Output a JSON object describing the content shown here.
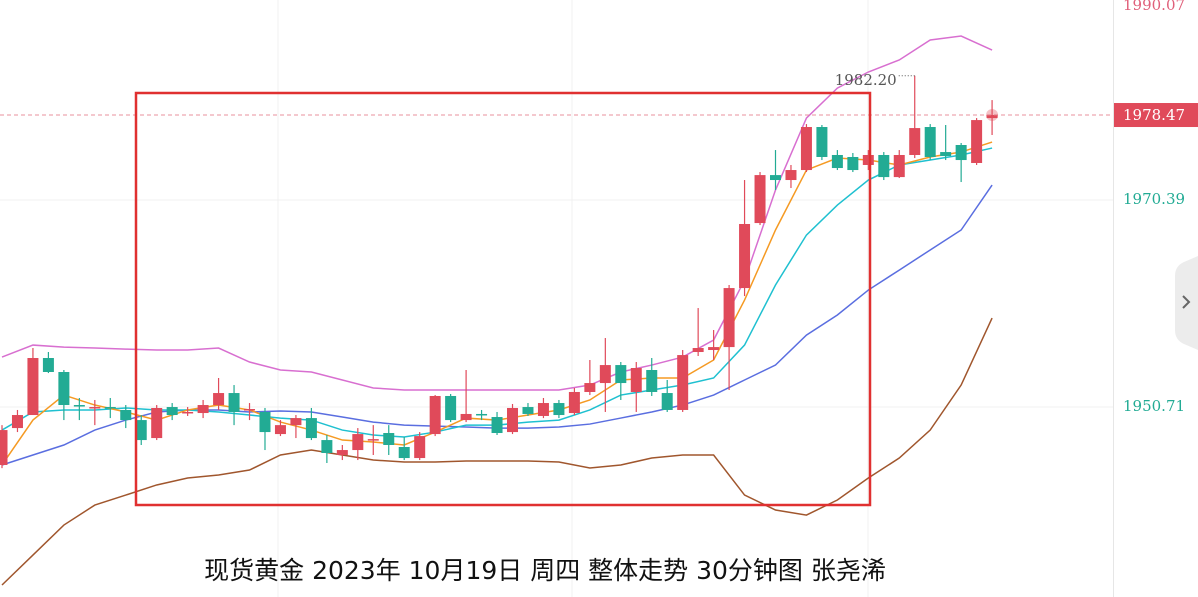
{
  "chart_data": {
    "type": "candlestick",
    "up_color": "#e04a5a",
    "down_color": "#22ab94",
    "ylim": [
      1932.65,
      1990.07
    ],
    "yticks": [
      1990.07,
      1970.39,
      1950.71
    ],
    "ytick_colors": [
      "#e0607a",
      "#22ab94",
      "#22ab94"
    ],
    "grid": true,
    "current_price": 1978.47,
    "high_label": {
      "value": 1982.2,
      "label": "1982.20"
    },
    "caption": "现货黄金 2023年 10月19日 周四 整体走势  30分钟图  张尧浠",
    "open": [
      1945.2,
      1948.71,
      1949.95,
      1955.37,
      1954.04,
      1950.9,
      1950.62,
      1950.71,
      1950.43,
      1949.47,
      1947.76,
      1950.71,
      1950.14,
      1950.14,
      1950.9,
      1952.04,
      1950.43,
      1950.24,
      1948.14,
      1948.99,
      1949.66,
      1947.57,
      1946.15,
      1946.62,
      1947.57,
      1948.24,
      1946.91,
      1945.86,
      1948.14,
      1951.76,
      1949.47,
      1950.05,
      1949.76,
      1948.33,
      1950.71,
      1949.86,
      1951.09,
      1950.14,
      1952.14,
      1952.99,
      1954.7,
      1952.14,
      1954.23,
      1952.04,
      1950.43,
      1955.94,
      1956.13,
      1956.41,
      1962.02,
      1968.2,
      1972.76,
      1972.29,
      1973.24,
      1977.33,
      1974.67,
      1974.48,
      1973.72,
      1974.67,
      1972.57,
      1974.67,
      1977.33,
      1974.95,
      1975.62,
      1973.91,
      1978.18
    ],
    "high": [
      1948.99,
      1950.43,
      1956.32,
      1955.94,
      1954.23,
      1951.57,
      1951.38,
      1951.57,
      1950.9,
      1949.95,
      1950.9,
      1951.09,
      1950.71,
      1951.38,
      1953.47,
      1952.8,
      1951.09,
      1950.62,
      1949.47,
      1949.95,
      1950.62,
      1948.05,
      1947.1,
      1948.71,
      1948.99,
      1948.99,
      1947.86,
      1948.33,
      1951.85,
      1951.95,
      1954.23,
      1950.43,
      1950.24,
      1951.0,
      1951.09,
      1951.57,
      1951.38,
      1952.52,
      1955.18,
      1957.27,
      1954.99,
      1954.99,
      1955.37,
      1953.28,
      1956.13,
      1960.12,
      1958.03,
      1962.31,
      1972.29,
      1973.05,
      1975.14,
      1973.72,
      1977.61,
      1977.52,
      1975.14,
      1974.86,
      1975.14,
      1974.95,
      1975.14,
      1982.2,
      1977.61,
      1977.52,
      1975.81,
      1978.18,
      1979.89
    ],
    "low": [
      1944.9,
      1948.33,
      1949.95,
      1953.94,
      1949.47,
      1949.47,
      1948.99,
      1949.66,
      1948.71,
      1947.1,
      1947.57,
      1949.47,
      1949.86,
      1949.66,
      1950.43,
      1948.99,
      1949.47,
      1946.62,
      1947.95,
      1947.76,
      1947.57,
      1945.39,
      1945.67,
      1945.67,
      1946.15,
      1946.15,
      1945.67,
      1945.67,
      1947.95,
      1949.28,
      1949.28,
      1949.47,
      1948.05,
      1948.14,
      1949.86,
      1949.66,
      1949.66,
      1949.95,
      1951.85,
      1950.24,
      1951.38,
      1950.24,
      1951.76,
      1950.24,
      1950.24,
      1955.56,
      1955.18,
      1952.33,
      1961.26,
      1968.01,
      1971.34,
      1971.53,
      1973.05,
      1974.19,
      1973.24,
      1973.05,
      1973.24,
      1972.29,
      1972.48,
      1974.38,
      1974.19,
      1974.19,
      1972.1,
      1973.72,
      1976.57
    ],
    "close": [
      1948.52,
      1949.95,
      1955.37,
      1954.04,
      1950.9,
      1950.81,
      1950.71,
      1950.62,
      1949.47,
      1947.57,
      1950.62,
      1949.95,
      1950.24,
      1950.9,
      1952.04,
      1950.24,
      1950.52,
      1948.33,
      1948.99,
      1949.66,
      1947.76,
      1946.34,
      1946.62,
      1948.14,
      1947.66,
      1947.1,
      1945.86,
      1947.95,
      1951.76,
      1949.47,
      1950.05,
      1949.95,
      1948.24,
      1950.62,
      1950.05,
      1951.09,
      1949.95,
      1952.14,
      1952.99,
      1954.7,
      1952.99,
      1954.42,
      1952.14,
      1950.43,
      1955.65,
      1956.32,
      1956.41,
      1962.02,
      1968.11,
      1972.76,
      1972.29,
      1973.24,
      1977.33,
      1974.48,
      1973.43,
      1973.24,
      1974.67,
      1972.57,
      1974.67,
      1977.23,
      1974.48,
      1974.57,
      1974.19,
      1977.99,
      1978.47
    ],
    "series": [
      {
        "color": "#d86fd0",
        "x": [
          0,
          2,
          4,
          6,
          8,
          10,
          12,
          14,
          16,
          18,
          20,
          22,
          24,
          26,
          28,
          30,
          32,
          34,
          36,
          38,
          40,
          42,
          44,
          46,
          48,
          50,
          52,
          54,
          56,
          58,
          60,
          62,
          64
        ],
        "values": [
          1955.46,
          1956.6,
          1956.41,
          1956.32,
          1956.22,
          1956.13,
          1956.13,
          1956.32,
          1954.99,
          1954.23,
          1954.04,
          1953.28,
          1952.52,
          1952.33,
          1952.33,
          1952.33,
          1952.33,
          1952.33,
          1952.33,
          1952.8,
          1954.04,
          1954.7,
          1955.46,
          1957.08,
          1962.78,
          1971.34,
          1978.18,
          1981.03,
          1982.56,
          1983.7,
          1985.6,
          1985.98,
          1984.65
        ]
      },
      {
        "color": "#a0562d",
        "x": [
          0,
          2,
          4,
          6,
          8,
          10,
          12,
          14,
          16,
          18,
          20,
          22,
          24,
          26,
          28,
          30,
          32,
          34,
          36,
          38,
          40,
          42,
          44,
          46,
          48,
          50,
          52,
          54,
          56,
          58,
          60,
          62,
          64
        ],
        "values": [
          1933.79,
          1936.64,
          1939.49,
          1941.39,
          1942.34,
          1943.3,
          1943.96,
          1944.25,
          1944.72,
          1946.15,
          1946.62,
          1946.15,
          1945.67,
          1945.48,
          1945.48,
          1945.58,
          1945.58,
          1945.58,
          1945.48,
          1944.91,
          1945.2,
          1945.86,
          1946.15,
          1946.15,
          1942.34,
          1940.92,
          1940.44,
          1941.87,
          1943.96,
          1945.86,
          1948.52,
          1952.8,
          1959.17
        ]
      },
      {
        "color": "#5a6ee0",
        "x": [
          0,
          2,
          4,
          6,
          8,
          10,
          12,
          14,
          16,
          18,
          20,
          22,
          24,
          26,
          28,
          30,
          32,
          34,
          36,
          38,
          40,
          42,
          44,
          46,
          48,
          50,
          52,
          54,
          56,
          58,
          60,
          62,
          64
        ],
        "values": [
          1945.2,
          1946.15,
          1947.1,
          1948.52,
          1949.47,
          1950.24,
          1950.43,
          1950.43,
          1950.24,
          1950.33,
          1950.24,
          1949.76,
          1949.28,
          1948.99,
          1948.9,
          1948.81,
          1948.71,
          1948.71,
          1948.81,
          1949.09,
          1949.66,
          1950.24,
          1950.9,
          1951.85,
          1953.28,
          1954.7,
          1957.55,
          1959.46,
          1961.83,
          1963.73,
          1965.64,
          1967.54,
          1971.81
        ]
      },
      {
        "color": "#1fc0d0",
        "x": [
          0,
          2,
          4,
          6,
          8,
          10,
          12,
          14,
          16,
          18,
          20,
          22,
          24,
          26,
          28,
          30,
          32,
          34,
          36,
          38,
          40,
          42,
          44,
          46,
          48,
          50,
          52,
          54,
          56,
          58,
          60,
          62,
          64
        ],
        "values": [
          1948.52,
          1950.24,
          1950.43,
          1950.43,
          1950.62,
          1950.43,
          1950.43,
          1950.24,
          1949.95,
          1949.66,
          1949.47,
          1948.52,
          1948.05,
          1947.86,
          1948.33,
          1948.99,
          1948.99,
          1949.28,
          1949.47,
          1950.43,
          1951.85,
          1952.33,
          1952.8,
          1953.47,
          1956.6,
          1962.31,
          1967.06,
          1969.91,
          1972.29,
          1973.72,
          1974.19,
          1974.67,
          1975.33
        ]
      },
      {
        "color": "#f59a23",
        "x": [
          0,
          2,
          4,
          6,
          8,
          10,
          12,
          14,
          16,
          18,
          20,
          22,
          24,
          26,
          28,
          30,
          32,
          34,
          36,
          38,
          40,
          42,
          44,
          46,
          48,
          50,
          52,
          54,
          56,
          58,
          60,
          62,
          64
        ],
        "values": [
          1945.2,
          1949.47,
          1951.85,
          1950.9,
          1950.24,
          1949.47,
          1950.43,
          1950.9,
          1950.43,
          1949.28,
          1948.52,
          1947.57,
          1947.38,
          1947.1,
          1948.33,
          1949.66,
          1949.47,
          1949.95,
          1950.43,
          1951.38,
          1953.28,
          1953.47,
          1953.47,
          1955.18,
          1960.88,
          1967.54,
          1973.24,
          1974.38,
          1974.19,
          1973.72,
          1974.48,
          1974.95,
          1975.9
        ]
      }
    ]
  }
}
